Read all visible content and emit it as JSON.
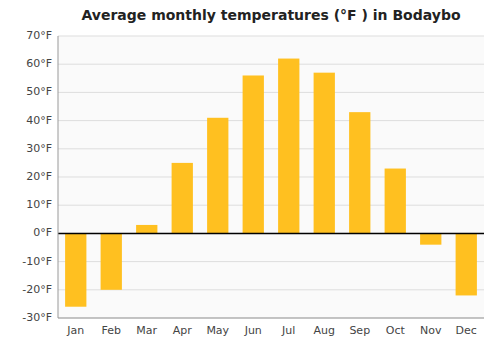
{
  "chart_data": {
    "type": "bar",
    "title": "Average monthly temperatures (°F ) in Bodaybo",
    "categories": [
      "Jan",
      "Feb",
      "Mar",
      "Apr",
      "May",
      "Jun",
      "Jul",
      "Aug",
      "Sep",
      "Oct",
      "Nov",
      "Dec"
    ],
    "values": [
      -26,
      -20,
      3,
      25,
      41,
      56,
      62,
      57,
      43,
      23,
      -4,
      -22
    ],
    "color": "#FFC020",
    "ylim": [
      -30,
      70
    ],
    "yticks": [
      {
        "value": -30,
        "label": "-30°F"
      },
      {
        "value": -20,
        "label": "-20°F"
      },
      {
        "value": -10,
        "label": "-10°F"
      },
      {
        "value": 0,
        "label": "0°F"
      },
      {
        "value": 10,
        "label": "10°F"
      },
      {
        "value": 20,
        "label": "20°F"
      },
      {
        "value": 30,
        "label": "30°F"
      },
      {
        "value": 40,
        "label": "40°F"
      },
      {
        "value": 50,
        "label": "50°F"
      },
      {
        "value": 60,
        "label": "60°F"
      },
      {
        "value": 70,
        "label": "70°F"
      }
    ],
    "grid": true
  }
}
